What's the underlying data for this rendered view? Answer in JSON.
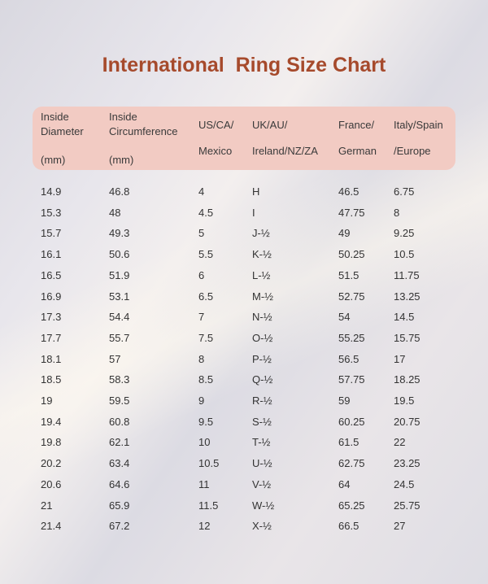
{
  "title": "International  Ring Size Chart",
  "colors": {
    "title": "#a64a2c",
    "header_bg": "#f2cbc3"
  },
  "headers": [
    {
      "line1": "Inside",
      "line2": "Diameter",
      "line3": "(mm)"
    },
    {
      "line1": "Inside",
      "line2": "Circumference",
      "line3": "(mm)"
    },
    {
      "line1": "US/CA/",
      "line2": "Mexico"
    },
    {
      "line1": "UK/AU/",
      "line2": "Ireland/NZ/ZA"
    },
    {
      "line1": "France/",
      "line2": "German"
    },
    {
      "line1": "Italy/Spain",
      "line2": "/Europe"
    }
  ],
  "rows": [
    [
      "14.9",
      "46.8",
      "4",
      "H",
      "46.5",
      "6.75"
    ],
    [
      "15.3",
      "48",
      "4.5",
      "I",
      "47.75",
      "8"
    ],
    [
      "15.7",
      "49.3",
      "5",
      "J-½",
      "49",
      "9.25"
    ],
    [
      "16.1",
      "50.6",
      "5.5",
      "K-½",
      "50.25",
      "10.5"
    ],
    [
      "16.5",
      "51.9",
      "6",
      "L-½",
      "51.5",
      "11.75"
    ],
    [
      "16.9",
      "53.1",
      "6.5",
      "M-½",
      "52.75",
      "13.25"
    ],
    [
      "17.3",
      "54.4",
      "7",
      "N-½",
      "54",
      "14.5"
    ],
    [
      "17.7",
      "55.7",
      "7.5",
      "O-½",
      "55.25",
      "15.75"
    ],
    [
      "18.1",
      "57",
      "8",
      "P-½",
      "56.5",
      "17"
    ],
    [
      "18.5",
      "58.3",
      "8.5",
      "Q-½",
      "57.75",
      "18.25"
    ],
    [
      "19",
      "59.5",
      "9",
      "R-½",
      "59",
      "19.5"
    ],
    [
      "19.4",
      "60.8",
      "9.5",
      "S-½",
      "60.25",
      "20.75"
    ],
    [
      "19.8",
      "62.1",
      "10",
      "T-½",
      "61.5",
      "22"
    ],
    [
      "20.2",
      "63.4",
      "10.5",
      "U-½",
      "62.75",
      "23.25"
    ],
    [
      "20.6",
      "64.6",
      "11",
      "V-½",
      "64",
      "24.5"
    ],
    [
      "21",
      "65.9",
      "11.5",
      "W-½",
      "65.25",
      "25.75"
    ],
    [
      "21.4",
      "67.2",
      "12",
      "X-½",
      "66.5",
      "27"
    ]
  ]
}
